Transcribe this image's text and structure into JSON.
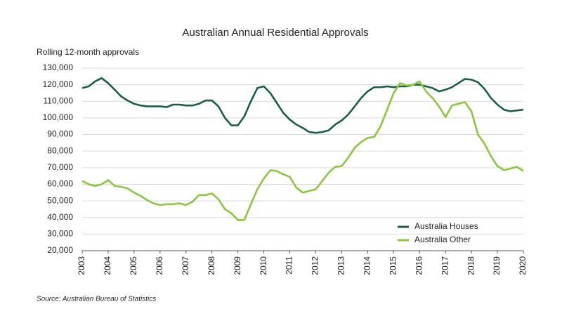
{
  "chart_data": {
    "type": "line",
    "title": "Australian Annual Residential Approvals",
    "y_axis_label": "Rolling 12-month approvals",
    "source": "Source: Australian Bureau of Statistics",
    "x": [
      2003,
      2003.25,
      2003.5,
      2003.75,
      2004,
      2004.25,
      2004.5,
      2004.75,
      2005,
      2005.25,
      2005.5,
      2005.75,
      2006,
      2006.25,
      2006.5,
      2006.75,
      2007,
      2007.25,
      2007.5,
      2007.75,
      2008,
      2008.25,
      2008.5,
      2008.75,
      2009,
      2009.25,
      2009.5,
      2009.75,
      2010,
      2010.25,
      2010.5,
      2010.75,
      2011,
      2011.25,
      2011.5,
      2011.75,
      2012,
      2012.25,
      2012.5,
      2012.75,
      2013,
      2013.25,
      2013.5,
      2013.75,
      2014,
      2014.25,
      2014.5,
      2014.75,
      2015,
      2015.25,
      2015.5,
      2015.75,
      2016,
      2016.25,
      2016.5,
      2016.75,
      2017,
      2017.25,
      2017.5,
      2017.75,
      2018,
      2018.25,
      2018.5,
      2018.75,
      2019,
      2019.25,
      2019.5,
      2019.75,
      2020
    ],
    "series": [
      {
        "name": "Australia Houses",
        "color": "#1a5e48",
        "values": [
          118000,
          119000,
          122000,
          124000,
          121000,
          117000,
          113000,
          110500,
          108500,
          107500,
          107000,
          107000,
          107000,
          106500,
          108000,
          108000,
          107500,
          107500,
          108500,
          110500,
          110500,
          107000,
          100000,
          95500,
          95500,
          101000,
          110000,
          118000,
          119000,
          115000,
          109000,
          103000,
          99000,
          96000,
          94000,
          91500,
          91000,
          91500,
          92500,
          96000,
          98500,
          102000,
          107000,
          112000,
          116000,
          118500,
          118500,
          119000,
          118500,
          119000,
          119000,
          120000,
          120000,
          119000,
          118000,
          116000,
          117000,
          118500,
          121000,
          123500,
          123000,
          121500,
          117500,
          112000,
          108000,
          105000,
          104000,
          104500,
          105000
        ]
      },
      {
        "name": "Australia Other",
        "color": "#8cc63f",
        "values": [
          62000,
          60000,
          59000,
          60000,
          62500,
          59000,
          58500,
          57500,
          55000,
          53000,
          50500,
          48500,
          47500,
          48000,
          48000,
          48500,
          47500,
          49500,
          53500,
          53500,
          54500,
          51000,
          45000,
          42500,
          38500,
          38500,
          48000,
          57000,
          63500,
          68500,
          68000,
          66000,
          64500,
          58000,
          55000,
          56000,
          57000,
          62000,
          67000,
          70500,
          71000,
          76000,
          82000,
          85500,
          88000,
          88500,
          95000,
          105000,
          115000,
          121000,
          119500,
          120000,
          122000,
          116000,
          112000,
          107000,
          100500,
          107500,
          108500,
          109500,
          104000,
          90000,
          84500,
          77000,
          71000,
          68500,
          69500,
          70500,
          68000
        ]
      }
    ],
    "xlim": [
      2003,
      2020
    ],
    "xticks": [
      2003,
      2004,
      2005,
      2006,
      2007,
      2008,
      2009,
      2010,
      2011,
      2012,
      2013,
      2014,
      2015,
      2016,
      2017,
      2018,
      2019,
      2020
    ],
    "ylim": [
      20000,
      130000
    ],
    "yticks": [
      {
        "value": 20000,
        "label": "20,000"
      },
      {
        "value": 30000,
        "label": "30,000"
      },
      {
        "value": 40000,
        "label": "40,000"
      },
      {
        "value": 50000,
        "label": "50,000"
      },
      {
        "value": 60000,
        "label": "60,000"
      },
      {
        "value": 70000,
        "label": "70,000"
      },
      {
        "value": 80000,
        "label": "80,000"
      },
      {
        "value": 90000,
        "label": "90,000"
      },
      {
        "value": 100000,
        "label": "100,000"
      },
      {
        "value": 110000,
        "label": "110,000"
      },
      {
        "value": 120000,
        "label": "120,000"
      },
      {
        "value": 130000,
        "label": "130,000"
      }
    ],
    "grid": true,
    "legend": "lower right"
  }
}
